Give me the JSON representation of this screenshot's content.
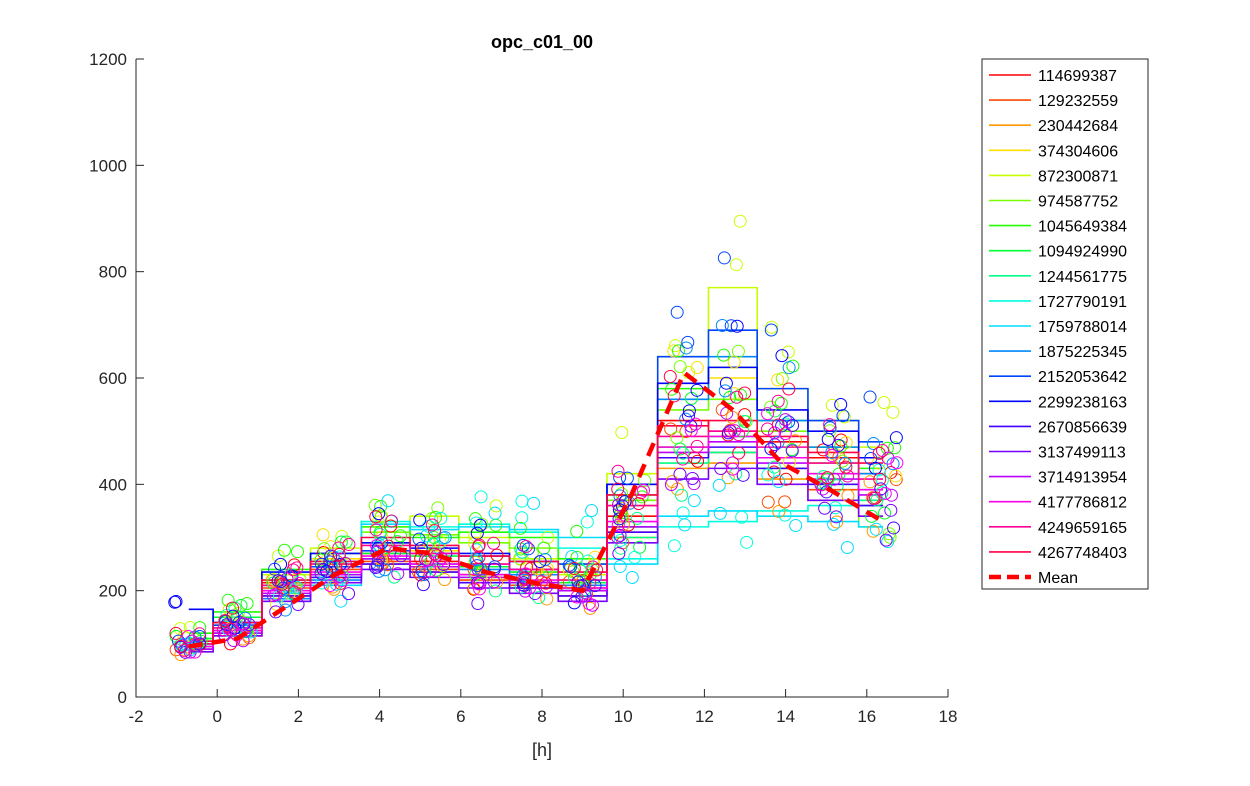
{
  "chart_data": {
    "type": "line",
    "title": "opc_c01_00",
    "xlabel": "[h]",
    "ylabel": "",
    "xlim": [
      -2,
      18
    ],
    "ylim": [
      0,
      1200
    ],
    "xticks": [
      "-2",
      "0",
      "2",
      "4",
      "6",
      "8",
      "10",
      "12",
      "14",
      "16",
      "18"
    ],
    "yticks": [
      "0",
      "200",
      "400",
      "600",
      "800",
      "1000",
      "1200"
    ],
    "grid": false,
    "legend_position": "outside-right",
    "x": [
      -0.7,
      0.5,
      1.7,
      2.9,
      4.2,
      5.3,
      6.6,
      7.8,
      9.0,
      10.2,
      11.5,
      12.7,
      13.9,
      15.2,
      16.4
    ],
    "series": [
      {
        "name": "114699387",
        "color": "#ff0000",
        "values": [
          95,
          115,
          215,
          245,
          270,
          255,
          230,
          215,
          205,
          340,
          520,
          500,
          480,
          450,
          420
        ]
      },
      {
        "name": "129232559",
        "color": "#ff4a00",
        "values": [
          90,
          130,
          205,
          240,
          255,
          240,
          220,
          210,
          200,
          310,
          470,
          460,
          430,
          390,
          360
        ]
      },
      {
        "name": "230442684",
        "color": "#ff9900",
        "values": [
          85,
          120,
          190,
          225,
          250,
          235,
          215,
          205,
          190,
          300,
          430,
          440,
          410,
          370,
          340
        ]
      },
      {
        "name": "374304606",
        "color": "#ffdd00",
        "values": [
          100,
          140,
          200,
          260,
          290,
          275,
          250,
          235,
          220,
          360,
          560,
          600,
          520,
          470,
          420
        ]
      },
      {
        "name": "872300871",
        "color": "#c8ff00",
        "values": [
          110,
          150,
          230,
          280,
          320,
          340,
          300,
          260,
          230,
          420,
          640,
          770,
          580,
          520,
          470
        ]
      },
      {
        "name": "974587752",
        "color": "#77ff00",
        "values": [
          95,
          135,
          210,
          250,
          310,
          305,
          290,
          280,
          250,
          370,
          540,
          560,
          500,
          440,
          320
        ]
      },
      {
        "name": "1045649384",
        "color": "#22ff00",
        "values": [
          120,
          160,
          240,
          270,
          320,
          300,
          310,
          300,
          260,
          380,
          580,
          620,
          520,
          470,
          430
        ]
      },
      {
        "name": "1094924990",
        "color": "#00ff33",
        "values": [
          110,
          150,
          220,
          255,
          270,
          265,
          245,
          235,
          215,
          320,
          470,
          490,
          450,
          420,
          390
        ]
      },
      {
        "name": "1244561775",
        "color": "#00ff88",
        "values": [
          100,
          140,
          200,
          230,
          260,
          245,
          225,
          215,
          200,
          300,
          440,
          460,
          430,
          400,
          370
        ]
      },
      {
        "name": "1727790191",
        "color": "#00ffdd",
        "values": [
          105,
          140,
          195,
          225,
          330,
          320,
          325,
          310,
          280,
          260,
          320,
          330,
          350,
          360,
          360
        ]
      },
      {
        "name": "1759788014",
        "color": "#00ddff",
        "values": [
          100,
          130,
          180,
          210,
          325,
          315,
          320,
          315,
          300,
          250,
          340,
          350,
          340,
          330,
          320
        ]
      },
      {
        "name": "1875225345",
        "color": "#0088ff",
        "values": [
          95,
          125,
          185,
          220,
          260,
          250,
          240,
          230,
          210,
          320,
          560,
          640,
          520,
          470,
          420
        ]
      },
      {
        "name": "2152053642",
        "color": "#0044ff",
        "values": [
          100,
          135,
          210,
          245,
          275,
          270,
          265,
          255,
          250,
          400,
          640,
          690,
          580,
          520,
          480
        ]
      },
      {
        "name": "2299238163",
        "color": "#0000ff",
        "values": [
          165,
          140,
          235,
          270,
          290,
          280,
          270,
          240,
          200,
          400,
          590,
          620,
          540,
          500,
          450
        ]
      },
      {
        "name": "2670856639",
        "color": "#4400ff",
        "values": [
          90,
          120,
          190,
          225,
          250,
          235,
          215,
          205,
          190,
          310,
          450,
          470,
          430,
          400,
          360
        ]
      },
      {
        "name": "3137499113",
        "color": "#7700ff",
        "values": [
          85,
          115,
          180,
          215,
          240,
          225,
          205,
          195,
          180,
          290,
          410,
          430,
          400,
          370,
          340
        ]
      },
      {
        "name": "3714913954",
        "color": "#bb00ff",
        "values": [
          90,
          120,
          195,
          230,
          260,
          245,
          225,
          215,
          200,
          320,
          460,
          480,
          440,
          410,
          380
        ]
      },
      {
        "name": "4177786812",
        "color": "#ff00ee",
        "values": [
          95,
          125,
          200,
          235,
          265,
          250,
          230,
          220,
          205,
          330,
          470,
          490,
          450,
          420,
          390
        ]
      },
      {
        "name": "4249659165",
        "color": "#ff0099",
        "values": [
          100,
          130,
          210,
          250,
          285,
          270,
          250,
          240,
          220,
          360,
          490,
          500,
          470,
          440,
          410
        ]
      },
      {
        "name": "4267748403",
        "color": "#ff0044",
        "values": [
          105,
          140,
          220,
          255,
          300,
          285,
          265,
          255,
          235,
          380,
          510,
          520,
          490,
          460,
          440
        ]
      }
    ],
    "mean": {
      "name": "Mean",
      "color": "#ff0000",
      "style": "dashed",
      "x": [
        -0.7,
        0.5,
        1.7,
        2.9,
        4.2,
        5.3,
        6.6,
        7.8,
        9.0,
        10.2,
        11.5,
        12.7,
        13.9,
        15.2,
        16.4
      ],
      "values": [
        95,
        110,
        170,
        230,
        280,
        270,
        235,
        215,
        200,
        380,
        610,
        540,
        440,
        385,
        330
      ]
    }
  }
}
